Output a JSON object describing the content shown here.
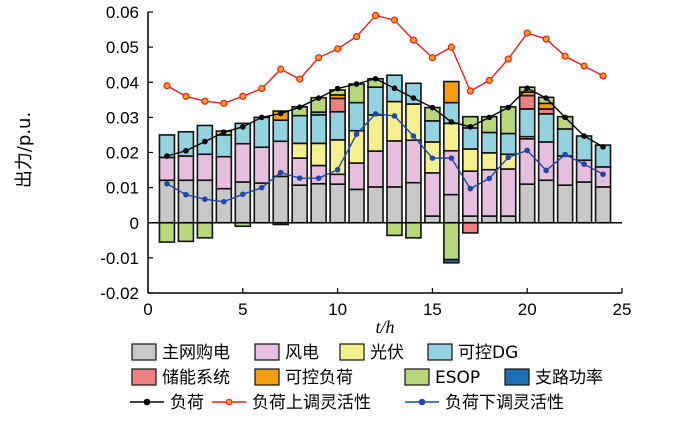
{
  "chart_data": {
    "type": "bar",
    "subtype": "stacked bar with line overlays",
    "xlabel": "t/h",
    "ylabel": "出力/p.u.",
    "xlim": [
      0,
      25
    ],
    "ylim": [
      -0.02,
      0.06
    ],
    "xticks": [
      "0",
      "5",
      "10",
      "15",
      "20",
      "25"
    ],
    "yticks": [
      "-0.02",
      "-0.01",
      "0",
      "0.01",
      "0.02",
      "0.03",
      "0.04",
      "0.05",
      "0.06"
    ],
    "x": [
      1,
      2,
      3,
      4,
      5,
      6,
      7,
      8,
      9,
      10,
      11,
      12,
      13,
      14,
      15,
      16,
      17,
      18,
      19,
      20,
      21,
      22,
      23,
      24
    ],
    "series": [
      {
        "name": "主网购电",
        "kind": "bar",
        "color": "#c8c8c8",
        "values": [
          0.0121,
          0.0121,
          0.0121,
          0.0097,
          0.0116,
          0.0113,
          0.0132,
          0.0107,
          0.0111,
          0.011,
          0.0095,
          0.0102,
          0.0102,
          0.0114,
          0.0019,
          0.008,
          0.0019,
          0.0019,
          0.0019,
          0.011,
          0.0121,
          0.0107,
          0.0116,
          0.0102
        ]
      },
      {
        "name": "风电",
        "kind": "bar",
        "color": "#e6bfdf",
        "values": [
          0.0065,
          0.0069,
          0.0074,
          0.0091,
          0.0109,
          0.0102,
          0.01,
          0.0077,
          0.0052,
          0.0028,
          0.0075,
          0.0102,
          0.0131,
          0.0121,
          0.0123,
          0.0125,
          0.0128,
          0.0132,
          0.0134,
          0.0129,
          0.0109,
          0.0083,
          0.0062,
          0.0057
        ]
      },
      {
        "name": "光伏",
        "kind": "bar",
        "color": "#f5f08f",
        "values": [
          0,
          0,
          0,
          0,
          0,
          0,
          0,
          0.0042,
          0.0063,
          0.0098,
          0.0092,
          0.0103,
          0.0112,
          0.0103,
          0.0088,
          0.0078,
          0.0063,
          0.0048,
          0.0042,
          0.0006,
          0,
          0,
          0,
          0
        ]
      },
      {
        "name": "可控DG",
        "kind": "bar",
        "color": "#93d3e0",
        "values": [
          0.0064,
          0.0069,
          0.0082,
          0.0062,
          0.0058,
          0.0085,
          0.006,
          0.0079,
          0.0081,
          0.008,
          0.008,
          0.0079,
          0.0075,
          0.0059,
          0.006,
          0.0059,
          0.006,
          0.0058,
          0.0059,
          0.0079,
          0.008,
          0.0077,
          0.0069,
          0.0062
        ]
      },
      {
        "name": "储能系统",
        "kind": "bar",
        "color": "#ef8080",
        "values": [
          0,
          0,
          0,
          0,
          0,
          0,
          0,
          0,
          0,
          0.0038,
          0,
          0,
          0,
          0,
          0,
          0,
          -0.0029,
          0,
          0,
          0.0038,
          0.0014,
          0,
          0,
          0
        ]
      },
      {
        "name": "可控负荷",
        "kind": "bar",
        "color": "#f59d10",
        "values": [
          0,
          0,
          0,
          0,
          0,
          0,
          0.0026,
          0,
          0.0008,
          0.001,
          0,
          0,
          0,
          0,
          0,
          0.006,
          0,
          0,
          0,
          0.001,
          0.0016,
          0,
          0,
          0
        ]
      },
      {
        "name": "ESOP",
        "kind": "bar",
        "color": "#b8d77a",
        "values": [
          -0.0055,
          -0.0053,
          -0.0043,
          0.0011,
          -0.001,
          0,
          -0.0005,
          0.0025,
          0.0041,
          0.0014,
          0.0053,
          0.0024,
          -0.0036,
          -0.0043,
          0.0038,
          -0.0105,
          0.0032,
          0.0045,
          0.0076,
          0.0014,
          0.0017,
          0.0035,
          0,
          0
        ]
      },
      {
        "name": "支路功率",
        "kind": "bar",
        "color": "#1f6fb8",
        "values": [
          0,
          0,
          0,
          0,
          0,
          0,
          0,
          0,
          0,
          0,
          0,
          0,
          0,
          0,
          0,
          -0.0009,
          0,
          0,
          0,
          0,
          0,
          0,
          0,
          0
        ]
      },
      {
        "name": "负荷",
        "kind": "line",
        "color": "#000000",
        "values": [
          0.019,
          0.0205,
          0.0231,
          0.0258,
          0.0273,
          0.03,
          0.0311,
          0.0329,
          0.0355,
          0.0382,
          0.0395,
          0.041,
          0.0383,
          0.0355,
          0.0328,
          0.0287,
          0.0273,
          0.03,
          0.0328,
          0.0383,
          0.0355,
          0.03,
          0.0247,
          0.0216
        ]
      },
      {
        "name": "负荷上调灵活性",
        "kind": "line",
        "color": "#e8201c",
        "values": [
          0.039,
          0.036,
          0.0346,
          0.034,
          0.036,
          0.0382,
          0.0437,
          0.0409,
          0.047,
          0.0495,
          0.053,
          0.059,
          0.0577,
          0.052,
          0.047,
          0.05,
          0.0375,
          0.0405,
          0.0466,
          0.054,
          0.0523,
          0.0474,
          0.0446,
          0.0418
        ]
      },
      {
        "name": "负荷下调灵活性",
        "kind": "line",
        "color": "#2048a8",
        "values": [
          0.0111,
          0.008,
          0.0067,
          0.006,
          0.0081,
          0.01,
          0.0143,
          0.0127,
          0.0127,
          0.0151,
          0.0252,
          0.031,
          0.0304,
          0.0247,
          0.0184,
          0.0184,
          0.0097,
          0.0126,
          0.0186,
          0.0206,
          0.0149,
          0.0194,
          0.0167,
          0.0138
        ]
      }
    ],
    "legend": "bottom",
    "grid": false
  }
}
